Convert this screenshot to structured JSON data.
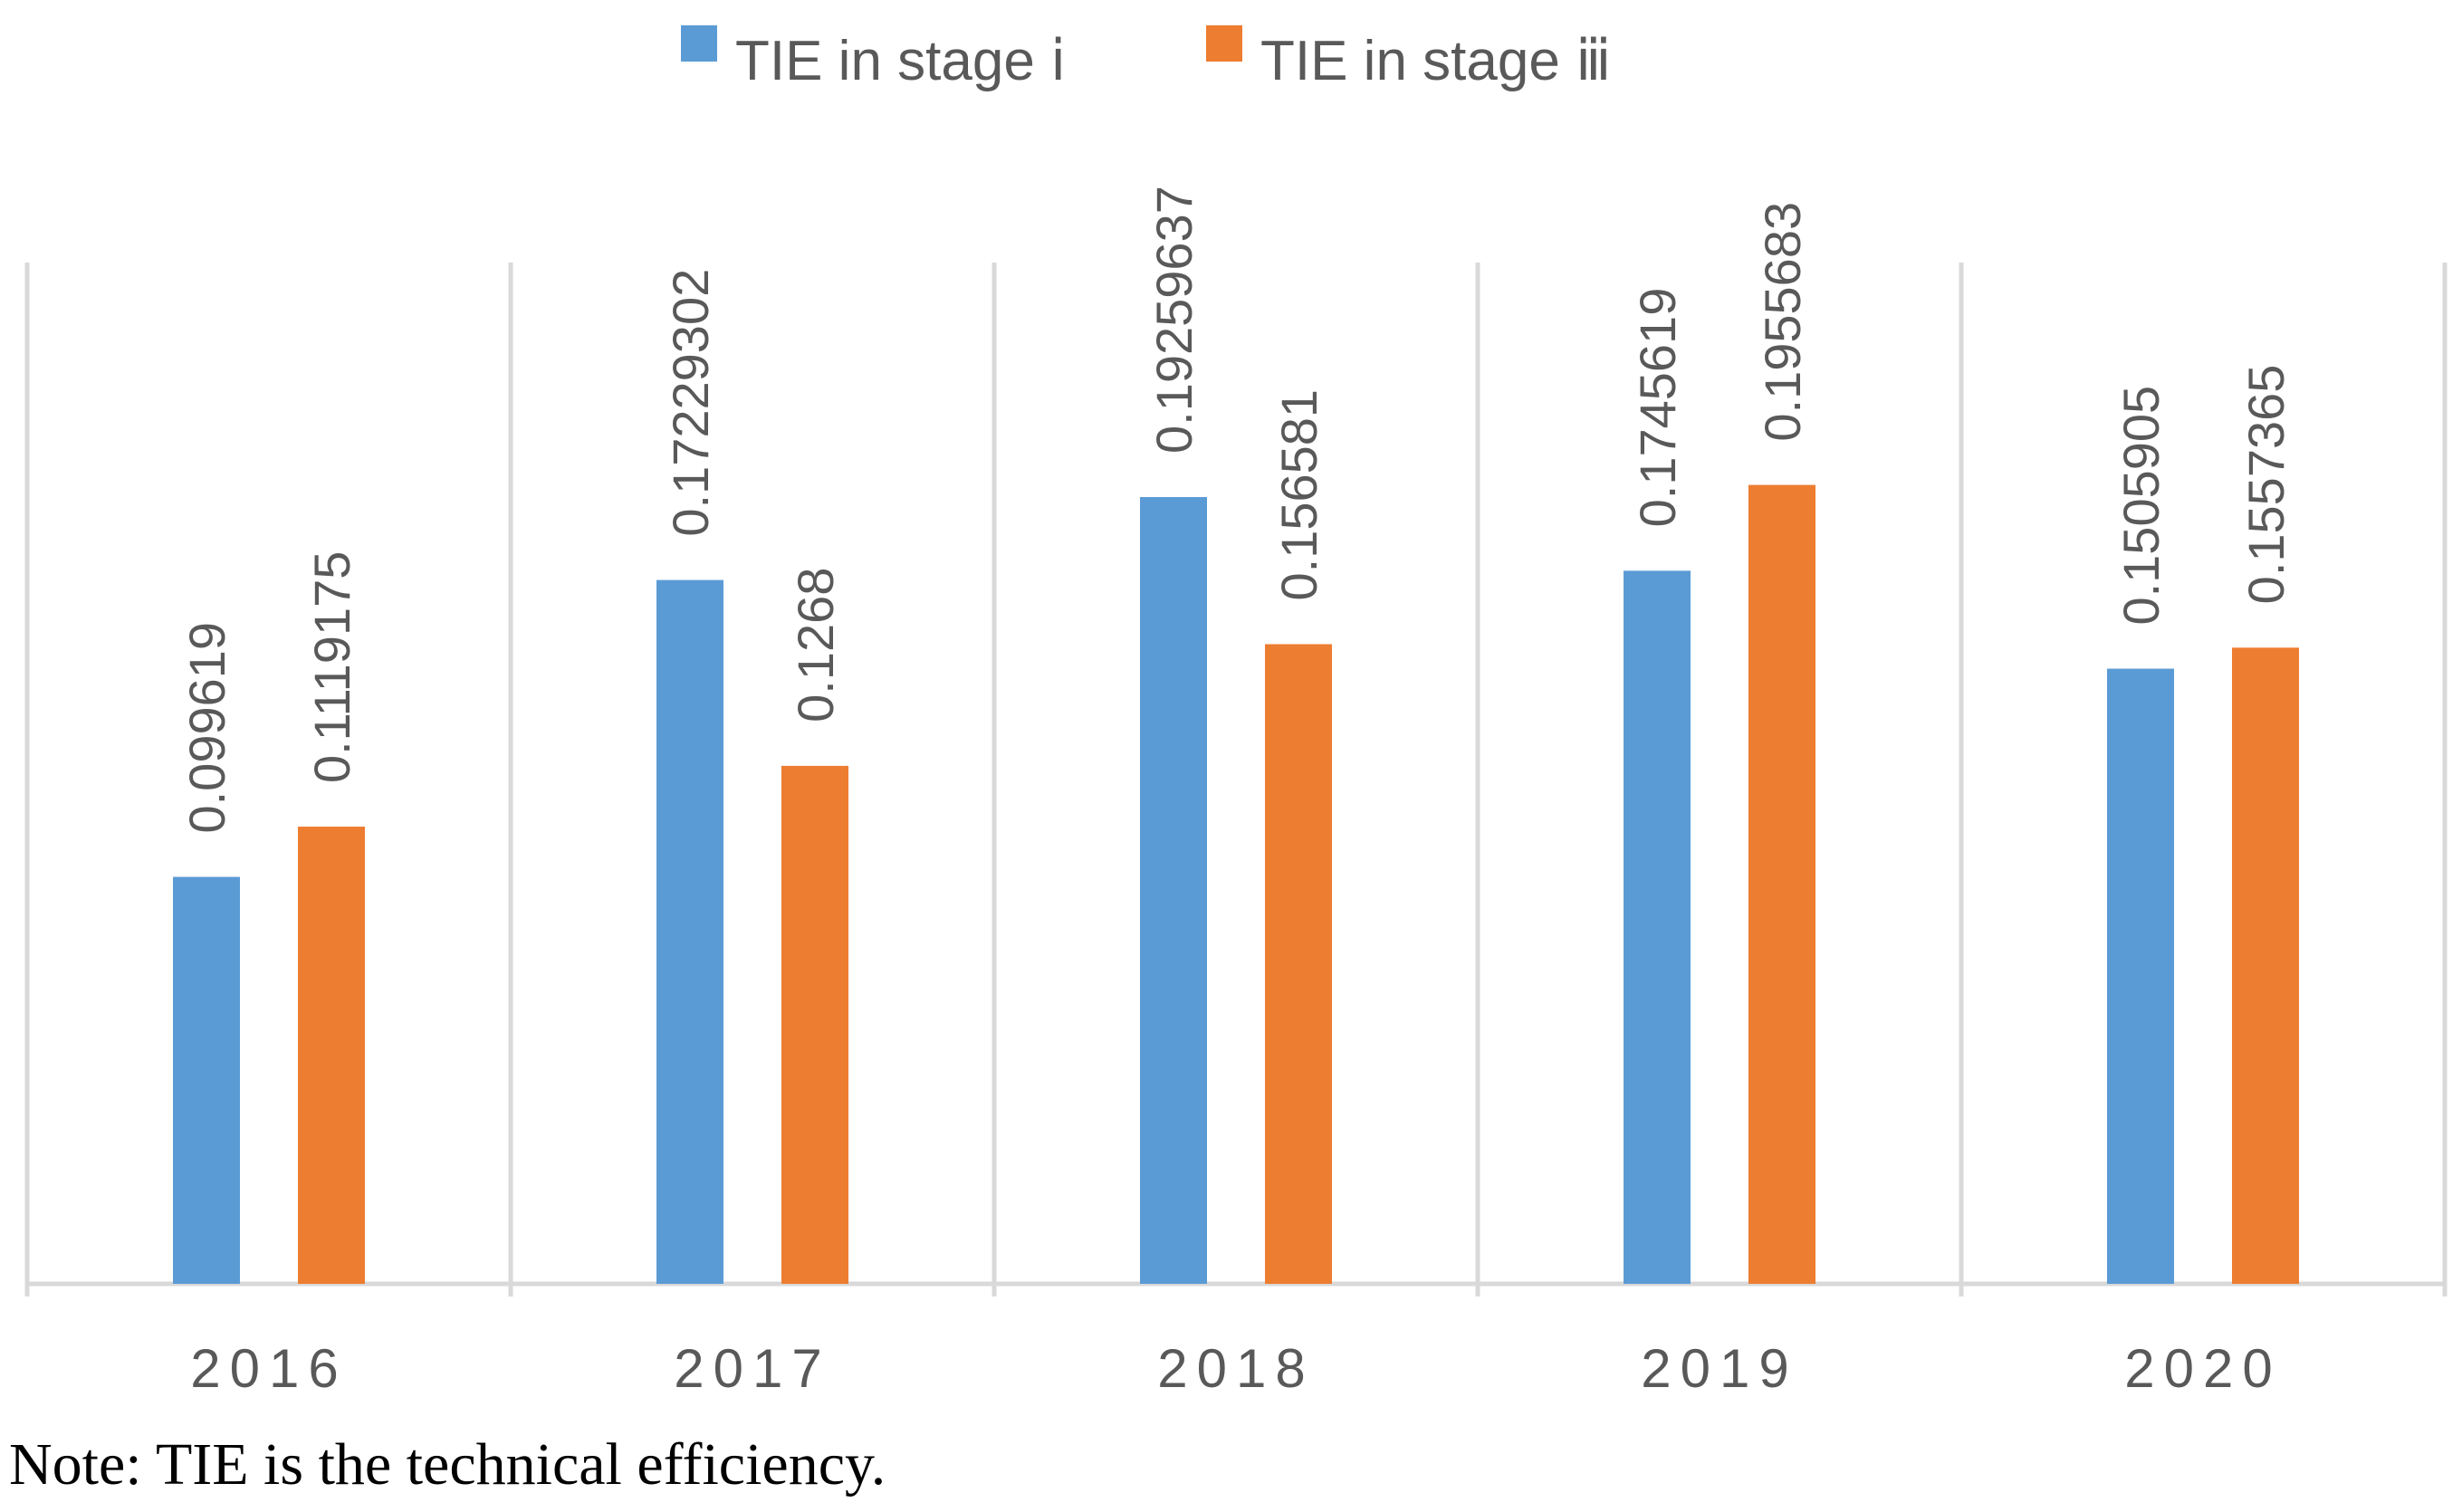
{
  "chart_data": {
    "type": "bar",
    "title": "",
    "xlabel": "",
    "ylabel": "",
    "categories": [
      "2016",
      "2017",
      "2018",
      "2019",
      "2020"
    ],
    "series": [
      {
        "name": "TIE in stage ⅰ",
        "color": "#5B9BD5",
        "values": [
          0.099619,
          0.17229302,
          0.19259637,
          0.1745619,
          0.1505905
        ],
        "labels": [
          "0.099619",
          "0.17229302",
          "0.19259637",
          "0.1745619",
          "0.1505905"
        ]
      },
      {
        "name": "TIE in  stage ⅲ",
        "color": "#ED7D31",
        "values": [
          0.1119175,
          0.1268,
          0.156581,
          0.1955683,
          0.1557365
        ],
        "labels": [
          "0.1119175",
          "0.1268",
          "0.156581",
          "0.1955683",
          "0.1557365"
        ]
      }
    ],
    "ylim": [
      0,
      0.25
    ],
    "grid": "vertical category separators",
    "legend_position": "top-center"
  },
  "note": "Note: TIE is the technical efficiency."
}
